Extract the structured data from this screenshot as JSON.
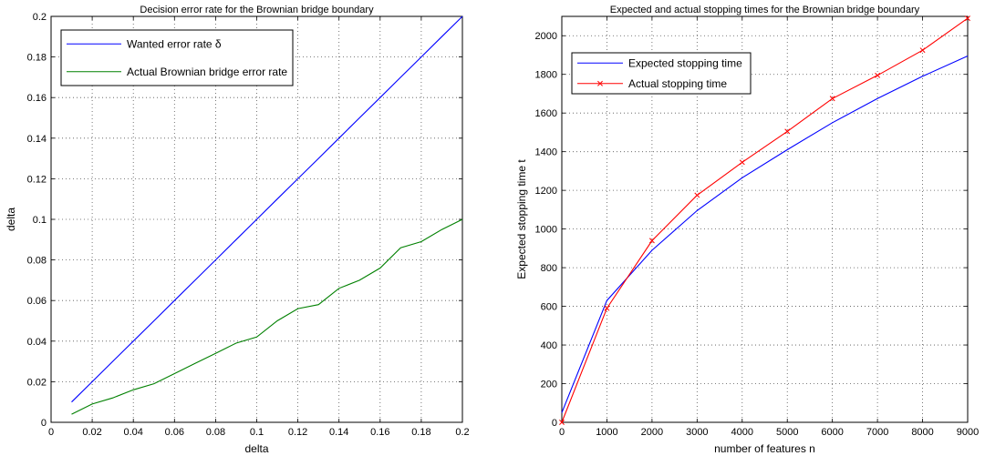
{
  "chart_data": [
    {
      "type": "line",
      "title": "Decision error rate for the Brownian bridge boundary",
      "xlabel": "delta",
      "ylabel": "delta",
      "xlim": [
        0,
        0.2
      ],
      "ylim": [
        0,
        0.2
      ],
      "xticks": [
        "0",
        "0.02",
        "0.04",
        "0.06",
        "0.08",
        "0.1",
        "0.12",
        "0.14",
        "0.16",
        "0.18",
        "0.2"
      ],
      "yticks": [
        "0",
        "0.02",
        "0.04",
        "0.06",
        "0.08",
        "0.1",
        "0.12",
        "0.14",
        "0.16",
        "0.18",
        "0.2"
      ],
      "grid": true,
      "legend_position": "top-left",
      "x": [
        0.01,
        0.02,
        0.03,
        0.04,
        0.05,
        0.06,
        0.07,
        0.08,
        0.09,
        0.1,
        0.11,
        0.12,
        0.13,
        0.14,
        0.15,
        0.16,
        0.17,
        0.18,
        0.19,
        0.2
      ],
      "series": [
        {
          "name": "Wanted error rate δ",
          "color": "#0000ff",
          "marker": "none",
          "values": [
            0.01,
            0.02,
            0.03,
            0.04,
            0.05,
            0.06,
            0.07,
            0.08,
            0.09,
            0.1,
            0.11,
            0.12,
            0.13,
            0.14,
            0.15,
            0.16,
            0.17,
            0.18,
            0.19,
            0.2
          ]
        },
        {
          "name": "Actual Brownian bridge error rate",
          "color": "#008000",
          "marker": "none",
          "values": [
            0.004,
            0.009,
            0.012,
            0.016,
            0.019,
            0.024,
            0.029,
            0.034,
            0.039,
            0.042,
            0.05,
            0.056,
            0.058,
            0.066,
            0.07,
            0.076,
            0.086,
            0.089,
            0.095,
            0.1
          ]
        }
      ]
    },
    {
      "type": "line",
      "title": "Expected and actual stopping times for the Brownian bridge boundary",
      "xlabel": "number of features n",
      "ylabel": "Expected stopping time t",
      "xlim": [
        0,
        9000
      ],
      "ylim": [
        0,
        2100
      ],
      "xticks": [
        "0",
        "1000",
        "2000",
        "3000",
        "4000",
        "5000",
        "6000",
        "7000",
        "8000",
        "9000"
      ],
      "yticks": [
        "0",
        "200",
        "400",
        "600",
        "800",
        "1000",
        "1200",
        "1400",
        "1600",
        "1800",
        "2000"
      ],
      "grid": true,
      "legend_position": "top-left",
      "x": [
        0,
        1000,
        2000,
        3000,
        4000,
        5000,
        6000,
        7000,
        8000,
        9000
      ],
      "series": [
        {
          "name": "Expected stopping time",
          "color": "#0000ff",
          "marker": "none",
          "values": [
            50,
            630,
            890,
            1095,
            1265,
            1410,
            1550,
            1675,
            1790,
            1895
          ]
        },
        {
          "name": "Actual stopping time",
          "color": "#ff0000",
          "marker": "x",
          "values": [
            0,
            590,
            940,
            1175,
            1345,
            1505,
            1675,
            1795,
            1925,
            2090
          ]
        }
      ]
    }
  ]
}
